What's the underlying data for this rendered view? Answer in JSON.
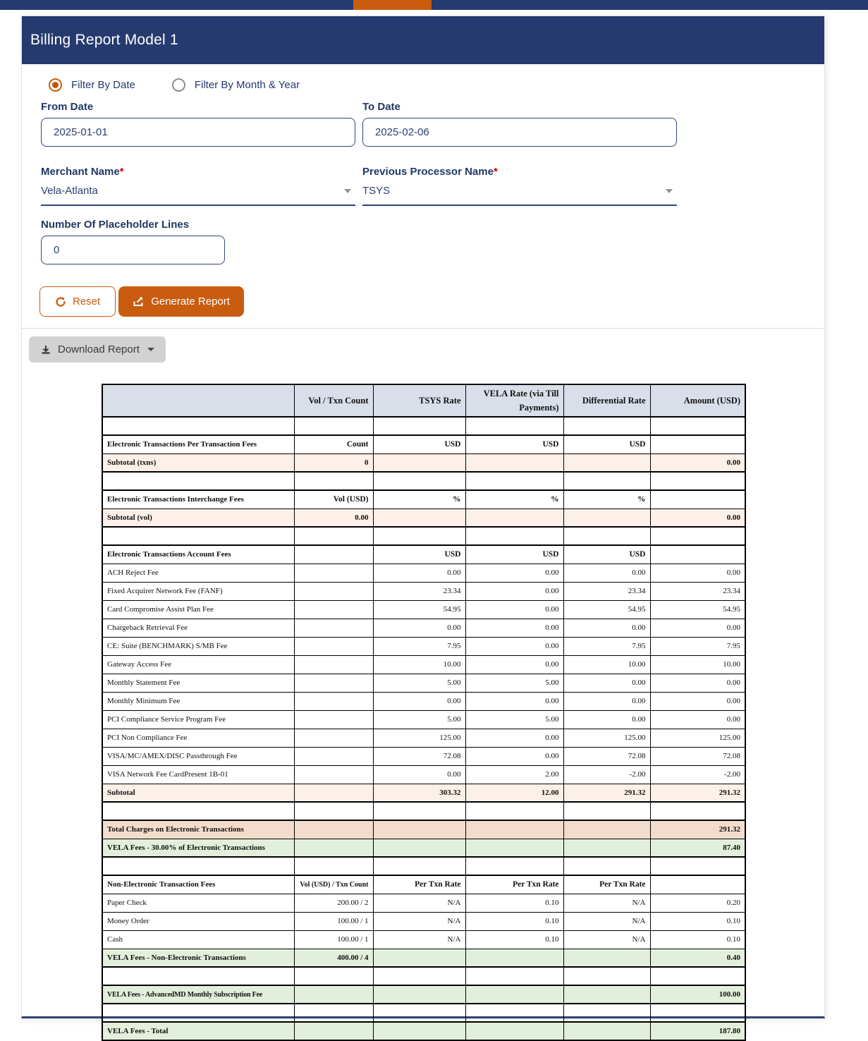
{
  "title": "Billing Report Model 1",
  "filters": {
    "radio_date_label": "Filter By Date",
    "radio_month_label": "Filter By Month & Year",
    "from_date": {
      "label": "From Date",
      "value": "2025-01-01"
    },
    "to_date": {
      "label": "To Date",
      "value": "2025-02-06"
    },
    "merchant": {
      "label": "Merchant Name",
      "required_mark": "*",
      "value": "Vela-Atlanta"
    },
    "processor": {
      "label": "Previous Processor Name",
      "required_mark": "*",
      "value": "TSYS"
    },
    "placeholder_lines": {
      "label": "Number Of Placeholder Lines",
      "value": "0"
    }
  },
  "buttons": {
    "reset": "Reset",
    "generate": "Generate Report",
    "download": "Download Report"
  },
  "colors": {
    "navy": "#253a6e",
    "orange": "#c95c0e",
    "label_navy": "#1f3864",
    "table_header_bg": "#d9dfe9",
    "subtotal_bg": "#fdf0e8",
    "total_bg": "#f3dccb",
    "green_bg": "#e2efda"
  },
  "table": {
    "columns": [
      "",
      "Vol / Txn Count",
      "TSYS Rate",
      "VELA Rate (via Till Payments)",
      "Differential Rate",
      "Amount (USD)"
    ],
    "rows": [
      {
        "style": "spacer",
        "cells": [
          "",
          "",
          "",
          "",
          "",
          ""
        ]
      },
      {
        "style": "section",
        "cells": [
          "Electronic Transactions Per Transaction Fees",
          "Count",
          "USD",
          "USD",
          "USD",
          ""
        ]
      },
      {
        "style": "subtotal",
        "cells": [
          "Subtotal (txns)",
          "0",
          "",
          "",
          "",
          "0.00"
        ]
      },
      {
        "style": "spacer",
        "cells": [
          "",
          "",
          "",
          "",
          "",
          ""
        ]
      },
      {
        "style": "section",
        "cells": [
          "Electronic Transactions Interchange Fees",
          "Vol (USD)",
          "%",
          "%",
          "%",
          ""
        ]
      },
      {
        "style": "subtotal",
        "cells": [
          "Subtotal (vol)",
          "0.00",
          "",
          "",
          "",
          "0.00"
        ]
      },
      {
        "style": "spacer",
        "cells": [
          "",
          "",
          "",
          "",
          "",
          ""
        ]
      },
      {
        "style": "section",
        "cells": [
          "Electronic Transactions Account Fees",
          "",
          "USD",
          "USD",
          "USD",
          ""
        ]
      },
      {
        "style": "fee",
        "cells": [
          "ACH Reject Fee",
          "",
          "0.00",
          "0.00",
          "0.00",
          "0.00"
        ]
      },
      {
        "style": "fee",
        "cells": [
          "Fixed Acquirer Network Fee (FANF)",
          "",
          "23.34",
          "0.00",
          "23.34",
          "23.34"
        ]
      },
      {
        "style": "fee",
        "cells": [
          "Card Compromise Assist Plan Fee",
          "",
          "54.95",
          "0.00",
          "54.95",
          "54.95"
        ]
      },
      {
        "style": "fee",
        "cells": [
          "Chargeback Retrieval Fee",
          "",
          "0.00",
          "0.00",
          "0.00",
          "0.00"
        ]
      },
      {
        "style": "fee",
        "cells": [
          "CE: Suite (BENCHMARK) S/MB Fee",
          "",
          "7.95",
          "0.00",
          "7.95",
          "7.95"
        ]
      },
      {
        "style": "fee",
        "cells": [
          "Gateway Access Fee",
          "",
          "10.00",
          "0.00",
          "10.00",
          "10.00"
        ]
      },
      {
        "style": "fee",
        "cells": [
          "Monthly Statement Fee",
          "",
          "5.00",
          "5.00",
          "0.00",
          "0.00"
        ]
      },
      {
        "style": "fee",
        "cells": [
          "Monthly Minimum Fee",
          "",
          "0.00",
          "0.00",
          "0.00",
          "0.00"
        ]
      },
      {
        "style": "fee",
        "cells": [
          "PCI Compliance Service Program Fee",
          "",
          "5.00",
          "5.00",
          "0.00",
          "0.00"
        ]
      },
      {
        "style": "fee",
        "cells": [
          "PCI Non Compliance Fee",
          "",
          "125.00",
          "0.00",
          "125.00",
          "125.00"
        ]
      },
      {
        "style": "fee",
        "cells": [
          "VISA/MC/AMEX/DISC Passthrough Fee",
          "",
          "72.08",
          "0.00",
          "72.08",
          "72.08"
        ]
      },
      {
        "style": "fee",
        "cells": [
          "VISA Network Fee CardPresent 1B-01",
          "",
          "0.00",
          "2.00",
          "-2.00",
          "-2.00"
        ]
      },
      {
        "style": "subtotal",
        "cells": [
          "Subtotal",
          "",
          "303.32",
          "12.00",
          "291.32",
          "291.32"
        ]
      },
      {
        "style": "spacer",
        "cells": [
          "",
          "",
          "",
          "",
          "",
          ""
        ]
      },
      {
        "style": "total",
        "cells": [
          "Total Charges on Electronic Transactions",
          "",
          "",
          "",
          "",
          "291.32"
        ]
      },
      {
        "style": "green",
        "cells": [
          "VELA Fees - 30.00% of Electronic Transactions",
          "",
          "",
          "",
          "",
          "87.40"
        ]
      },
      {
        "style": "spacer",
        "cells": [
          "",
          "",
          "",
          "",
          "",
          ""
        ]
      },
      {
        "style": "section",
        "cells": [
          "Non-Electronic Transaction Fees",
          "Vol (USD) / Txn Count",
          "Per Txn Rate",
          "Per Txn Rate",
          "Per Txn Rate",
          ""
        ],
        "small_col2": true
      },
      {
        "style": "fee",
        "cells": [
          "Paper Check",
          "200.00 / 2",
          "N/A",
          "0.10",
          "N/A",
          "0.20"
        ]
      },
      {
        "style": "fee",
        "cells": [
          "Money Order",
          "100.00 / 1",
          "N/A",
          "0.10",
          "N/A",
          "0.10"
        ]
      },
      {
        "style": "fee",
        "cells": [
          "Cash",
          "100.00 / 1",
          "N/A",
          "0.10",
          "N/A",
          "0.10"
        ]
      },
      {
        "style": "green",
        "cells": [
          "VELA Fees - Non-Electronic Transactions",
          "400.00 / 4",
          "",
          "",
          "",
          "0.40"
        ]
      },
      {
        "style": "spacer",
        "cells": [
          "",
          "",
          "",
          "",
          "",
          ""
        ]
      },
      {
        "style": "green",
        "cells": [
          "VELA Fees - AdvancedMD Monthly Subscription Fee",
          "",
          "",
          "",
          "",
          "100.00"
        ],
        "small_label": true
      },
      {
        "style": "spacer",
        "cells": [
          "",
          "",
          "",
          "",
          "",
          ""
        ]
      },
      {
        "style": "green",
        "cells": [
          "VELA Fees - Total",
          "",
          "",
          "",
          "",
          "187.80"
        ]
      }
    ]
  }
}
